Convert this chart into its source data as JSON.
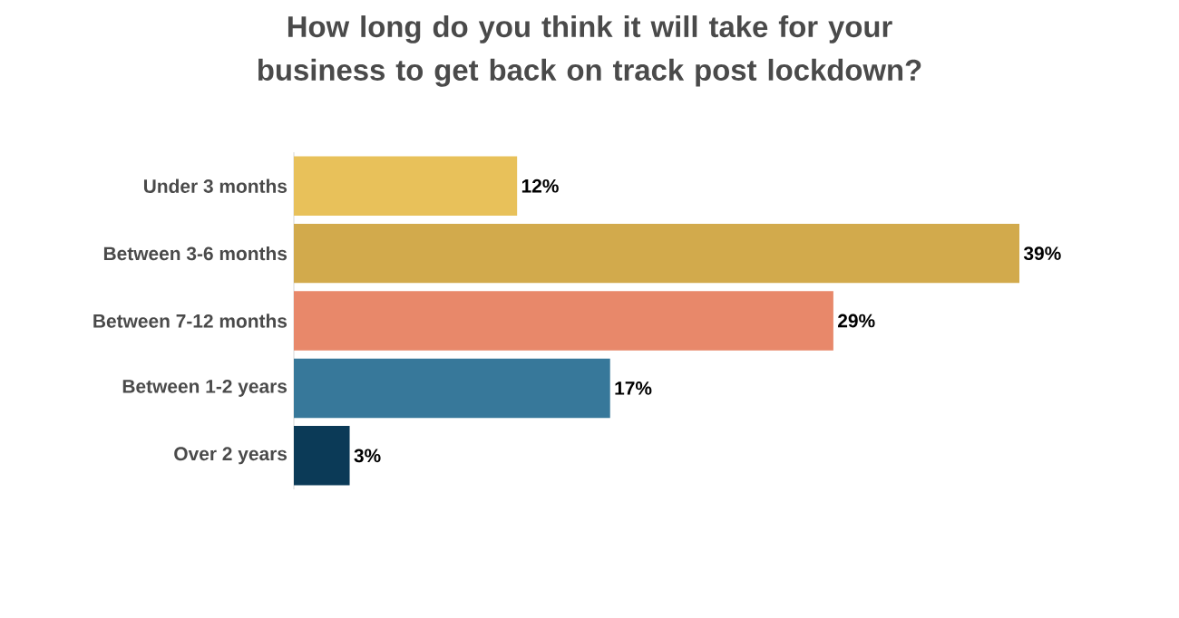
{
  "chart_data": {
    "type": "bar",
    "orientation": "horizontal",
    "title": "How long do you think it will take for your business to get back on track post lockdown?",
    "categories": [
      "Under 3 months",
      "Between 3-6 months",
      "Between 7-12 months",
      "Between 1-2 years",
      "Over 2 years"
    ],
    "values": [
      12,
      39,
      29,
      17,
      3
    ],
    "colors": [
      "#e8c15a",
      "#d2aa4c",
      "#e8886a",
      "#37789a",
      "#0b3a57"
    ],
    "value_labels": [
      "12%",
      "39%",
      "29%",
      "17%",
      "3%"
    ]
  }
}
